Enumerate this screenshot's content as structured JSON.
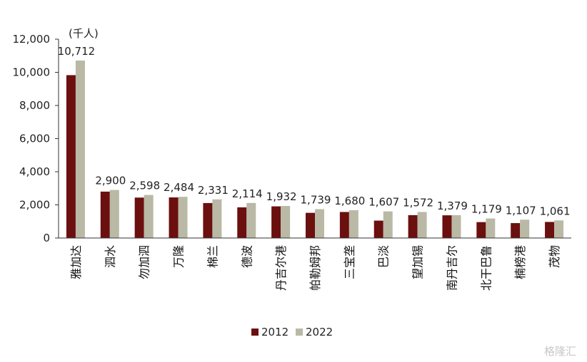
{
  "chart_data": {
    "type": "bar",
    "unit_label": "(千人)",
    "categories": [
      "雅加达",
      "泗水",
      "勿加泗",
      "万隆",
      "棉兰",
      "德波",
      "丹吉尔港",
      "帕勒姆邦",
      "三宝垄",
      "巴淡",
      "望加锡",
      "南丹吉尔",
      "北干巴鲁",
      "楠榜港",
      "茂物"
    ],
    "series": [
      {
        "name": "2012",
        "color": "#6b0f0f",
        "values": [
          9830,
          2800,
          2440,
          2450,
          2110,
          1850,
          1910,
          1520,
          1570,
          1050,
          1380,
          1370,
          960,
          900,
          970
        ]
      },
      {
        "name": "2022",
        "color": "#b9b9a6",
        "values": [
          10712,
          2900,
          2598,
          2484,
          2331,
          2114,
          1932,
          1739,
          1680,
          1607,
          1572,
          1379,
          1179,
          1107,
          1061
        ]
      }
    ],
    "data_labels": [
      "10,712",
      "2,900",
      "2,598",
      "2,484",
      "2,331",
      "2,114",
      "1,932",
      "1,739",
      "1,680",
      "1,607",
      "1,572",
      "1,379",
      "1,179",
      "1,107",
      "1,061"
    ],
    "y_ticks": [
      "0",
      "2,000",
      "4,000",
      "6,000",
      "8,000",
      "10,000",
      "12,000"
    ],
    "ylim": [
      0,
      12000
    ],
    "legend_position": "bottom-center",
    "grid": false
  },
  "watermark": "格隆汇"
}
